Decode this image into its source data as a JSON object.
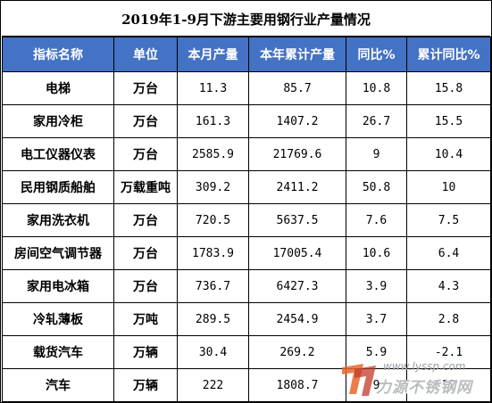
{
  "title": "2019年1-9月下游主要用钢行业产量情况",
  "headers": [
    "指标名称",
    "单位",
    "本月产量",
    "本年累计产量",
    "同比%",
    "累计同比%"
  ],
  "rows": [
    {
      "name": "电梯",
      "unit": "万台",
      "month": "11.3",
      "ytd": "85.7",
      "yoy": "10.8",
      "ytd_yoy": "15.8"
    },
    {
      "name": "家用冷柜",
      "unit": "万台",
      "month": "161.3",
      "ytd": "1407.2",
      "yoy": "26.7",
      "ytd_yoy": "15.5"
    },
    {
      "name": "电工仪器仪表",
      "unit": "万台",
      "month": "2585.9",
      "ytd": "21769.6",
      "yoy": "9",
      "ytd_yoy": "10.4"
    },
    {
      "name": "民用钢质船舶",
      "unit": "万载重吨",
      "month": "309.2",
      "ytd": "2411.2",
      "yoy": "50.8",
      "ytd_yoy": "10"
    },
    {
      "name": "家用洗衣机",
      "unit": "万台",
      "month": "720.5",
      "ytd": "5637.5",
      "yoy": "7.6",
      "ytd_yoy": "7.5"
    },
    {
      "name": "房间空气调节器",
      "unit": "万台",
      "month": "1783.9",
      "ytd": "17005.4",
      "yoy": "10.6",
      "ytd_yoy": "6.4"
    },
    {
      "name": "家用电冰箱",
      "unit": "万台",
      "month": "736.7",
      "ytd": "6427.3",
      "yoy": "3.9",
      "ytd_yoy": "4.3"
    },
    {
      "name": "冷轧薄板",
      "unit": "万吨",
      "month": "289.5",
      "ytd": "2454.9",
      "yoy": "3.7",
      "ytd_yoy": "2.8"
    },
    {
      "name": "载货汽车",
      "unit": "万辆",
      "month": "30.4",
      "ytd": "269.2",
      "yoy": "5.9",
      "ytd_yoy": "-2.1"
    },
    {
      "name": "汽车",
      "unit": "万辆",
      "month": "222",
      "ytd": "1808.7",
      "yoy": "9",
      "ytd_yoy": "12"
    }
  ],
  "watermark": {
    "url": "www.lyssp.com",
    "brand": "力源不锈钢网"
  },
  "colors": {
    "header_bg": "#4472c4",
    "header_text": "#ffffff"
  }
}
